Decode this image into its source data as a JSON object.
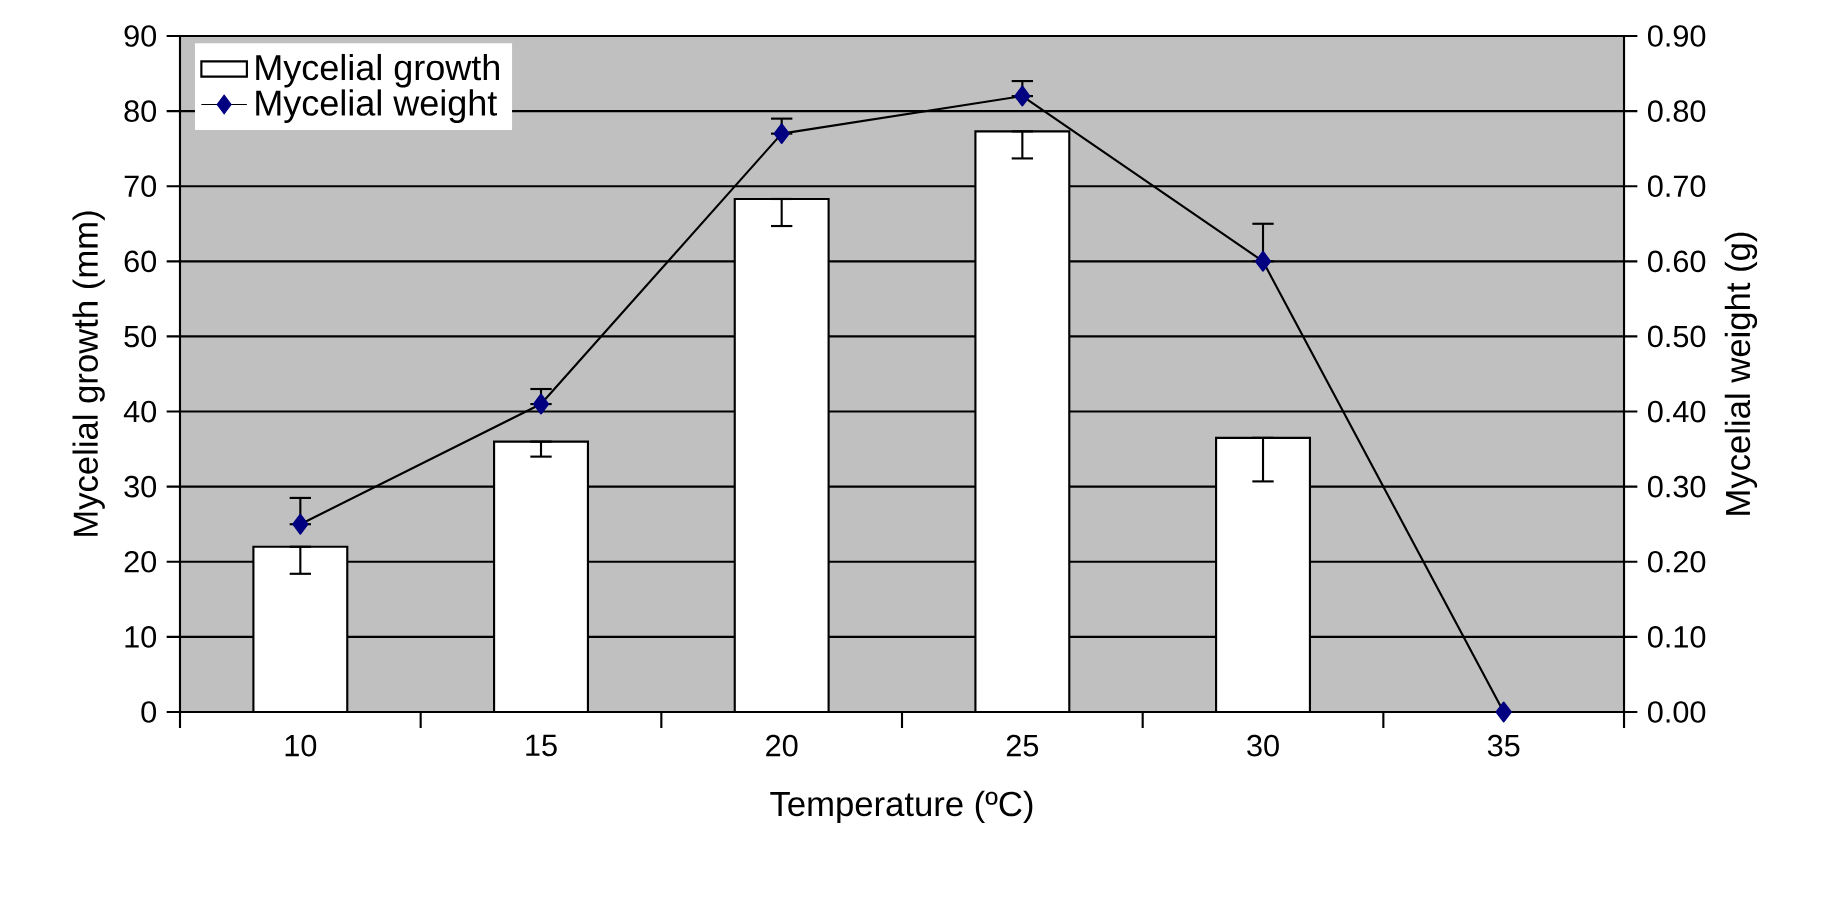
{
  "chart_data": {
    "type": "bar",
    "xlabel": "Temperature (ºC)",
    "ylabel": "Mycelial growth (mm)",
    "y2label": "Mycelial weight (g)",
    "categories": [
      "10",
      "15",
      "20",
      "25",
      "30",
      "35"
    ],
    "series": [
      {
        "name": "Mycelial growth",
        "color": "#ffffff",
        "values": [
          22,
          36,
          68.3,
          77.3,
          36.5,
          0
        ],
        "errors": [
          [
            18.4,
            22
          ],
          [
            34,
            36
          ],
          [
            64.7,
            68.3
          ],
          [
            73.7,
            77.3
          ],
          [
            30.7,
            36.5
          ],
          null
        ]
      },
      {
        "name": "Mycelial weight",
        "type": "line",
        "axis": "y2",
        "color": "#000080",
        "values": [
          0.25,
          0.41,
          0.77,
          0.82,
          0.6,
          0
        ],
        "errors": [
          [
            0.25,
            0.285
          ],
          [
            0.41,
            0.43
          ],
          [
            0.77,
            0.79
          ],
          [
            0.82,
            0.84
          ],
          [
            0.6,
            0.65
          ],
          null
        ]
      }
    ],
    "ylim": [
      0,
      90
    ],
    "yticks": [
      0,
      10,
      20,
      30,
      40,
      50,
      60,
      70,
      80,
      90
    ],
    "y2lim": [
      0,
      0.9
    ],
    "y2ticks": [
      {
        "value": 0,
        "label": "0.00"
      },
      {
        "value": 0.1,
        "label": "0.10"
      },
      {
        "value": 0.2,
        "label": "0.20"
      },
      {
        "value": 0.3,
        "label": "0.30"
      },
      {
        "value": 0.4,
        "label": "0.40"
      },
      {
        "value": 0.5,
        "label": "0.50"
      },
      {
        "value": 0.6,
        "label": "0.60"
      },
      {
        "value": 0.7,
        "label": "0.70"
      },
      {
        "value": 0.8,
        "label": "0.80"
      },
      {
        "value": 0.9,
        "label": "0.90"
      }
    ],
    "grid": "y",
    "legend": "top left",
    "marker": "diamond",
    "line_style": "solid"
  }
}
